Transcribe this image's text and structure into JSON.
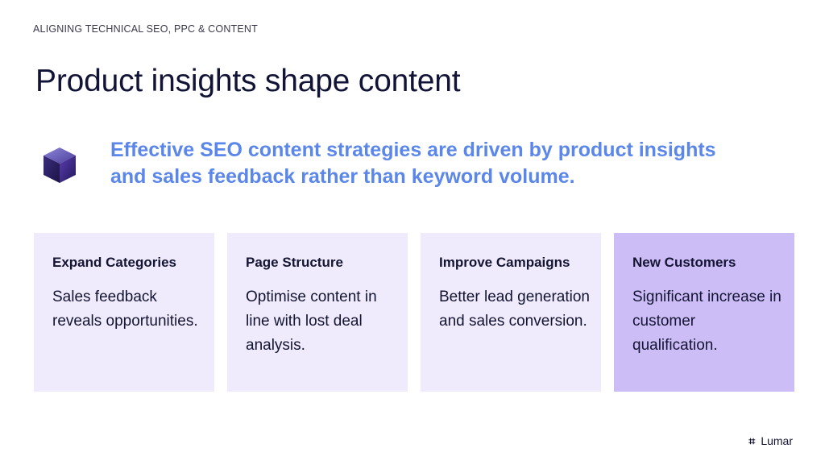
{
  "slide": {
    "eyebrow": "ALIGNING TECHNICAL SEO, PPC & CONTENT",
    "title": "Product insights shape content",
    "headline": "Effective SEO content strategies are driven by product insights and sales feedback rather than keyword volume.",
    "cube_icon": "cube-icon",
    "colors": {
      "headline": "#5b86ea",
      "card": "#efeafc",
      "card_highlight": "#cdbdf7",
      "title": "#121437"
    }
  },
  "cards": [
    {
      "title": "Expand Categories",
      "body": "Sales feedback reveals opportunities."
    },
    {
      "title": "Page Structure",
      "body": "Optimise content in line with lost deal analysis."
    },
    {
      "title": "Improve Campaigns",
      "body": "Better lead generation and sales conversion."
    },
    {
      "title": "New Customers",
      "body": "Significant increase in customer qualification."
    }
  ],
  "brand": {
    "mark": "⌗",
    "name": "Lumar"
  }
}
